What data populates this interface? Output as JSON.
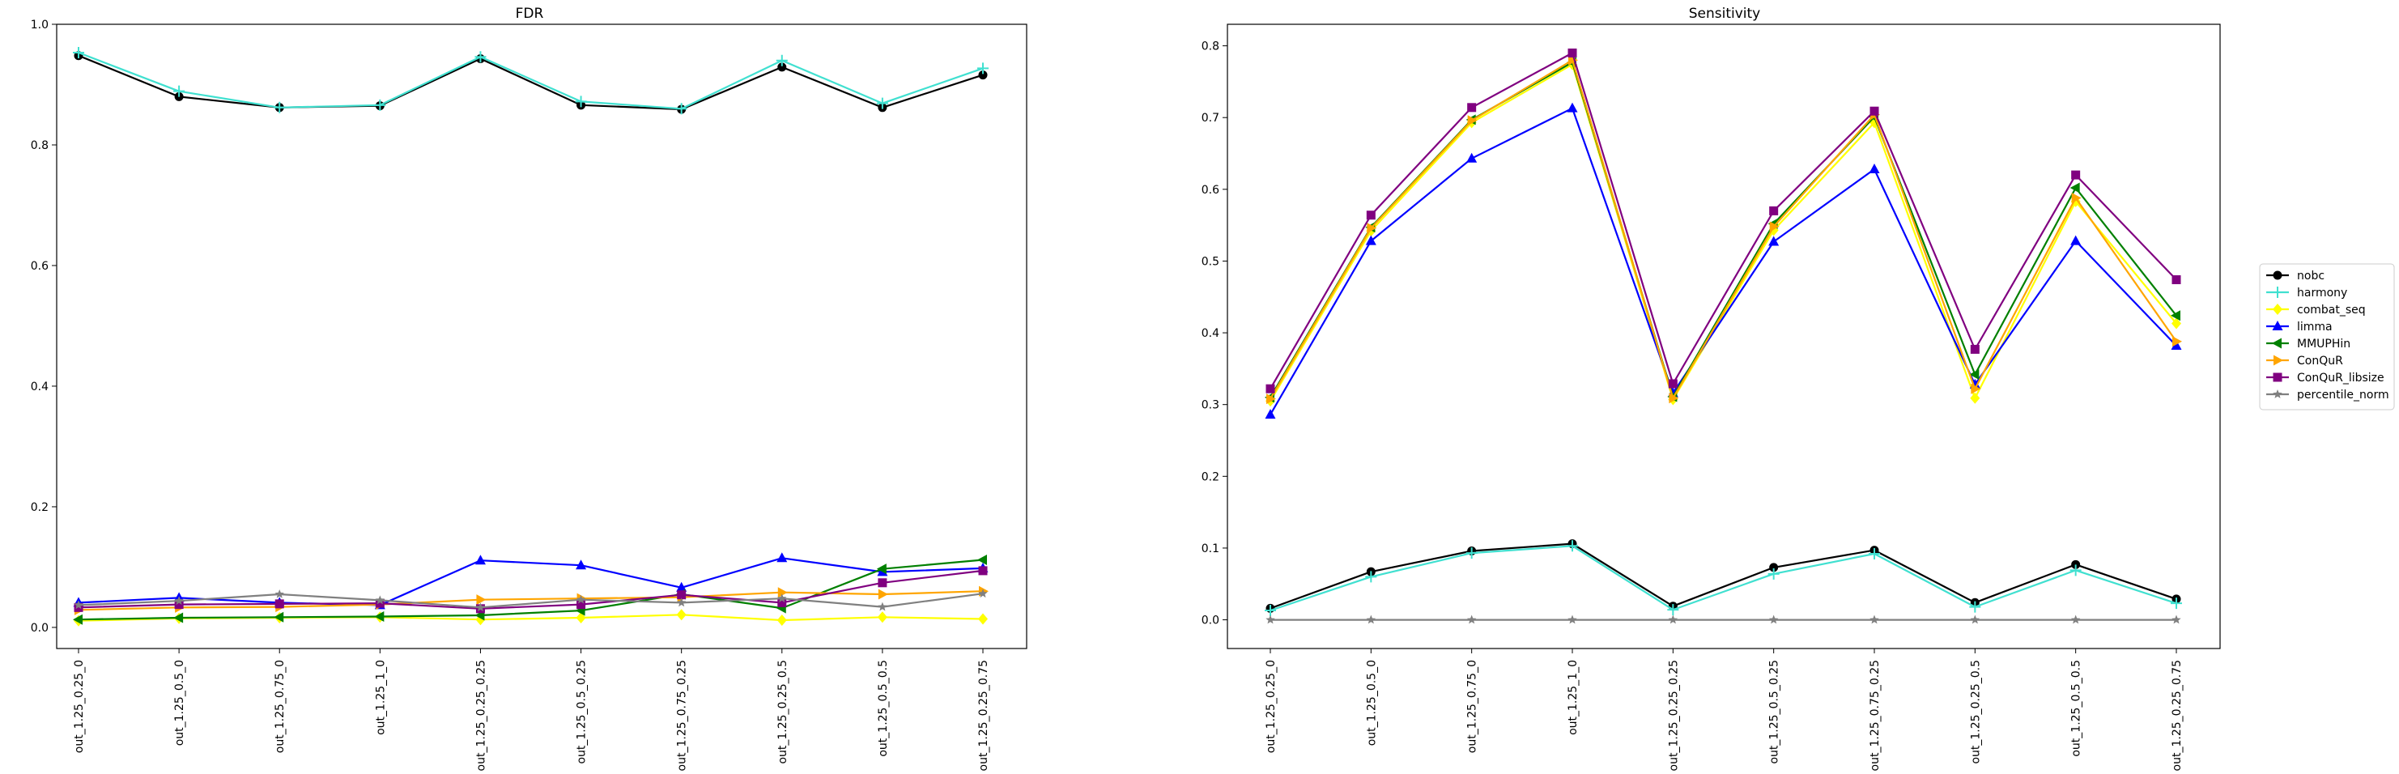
{
  "chart_data": [
    {
      "type": "line",
      "title": "FDR",
      "xlabel": "",
      "ylabel": "",
      "ylim": [
        -0.035,
        1.0
      ],
      "yticks": [
        0.0,
        0.2,
        0.4,
        0.6,
        0.8,
        1.0
      ],
      "ytick_labels": [
        "0.0",
        "0.2",
        "0.4",
        "0.6",
        "0.8",
        "1.0"
      ],
      "grid": false,
      "categories": [
        "out_1.25_0.25_0",
        "out_1.25_0.5_0",
        "out_1.25_0.75_0",
        "out_1.25_1_0",
        "out_1.25_0.25_0.25",
        "out_1.25_0.5_0.25",
        "out_1.25_0.75_0.25",
        "out_1.25_0.25_0.5",
        "out_1.25_0.5_0.5",
        "out_1.25_0.25_0.75"
      ],
      "series": [
        {
          "name": "nobc",
          "color": "#000000",
          "marker": "circle",
          "values": [
            0.948,
            0.88,
            0.862,
            0.865,
            0.943,
            0.866,
            0.859,
            0.929,
            0.862,
            0.916
          ]
        },
        {
          "name": "harmony",
          "color": "#40e0d0",
          "marker": "plus",
          "values": [
            0.953,
            0.889,
            0.862,
            0.866,
            0.946,
            0.872,
            0.86,
            0.94,
            0.869,
            0.927
          ]
        },
        {
          "name": "combat_seq",
          "color": "#ffff00",
          "marker": "diamond",
          "values": [
            0.011,
            0.015,
            0.016,
            0.017,
            0.013,
            0.016,
            0.021,
            0.012,
            0.017,
            0.014
          ]
        },
        {
          "name": "limma",
          "color": "#0000ff",
          "marker": "triangle-up",
          "values": [
            0.041,
            0.049,
            0.041,
            0.037,
            0.111,
            0.103,
            0.066,
            0.115,
            0.092,
            0.098
          ]
        },
        {
          "name": "MMUPHin",
          "color": "#008000",
          "marker": "triangle-left",
          "values": [
            0.013,
            0.016,
            0.017,
            0.018,
            0.02,
            0.028,
            0.055,
            0.032,
            0.097,
            0.112
          ]
        },
        {
          "name": "ConQuR",
          "color": "#ffa500",
          "marker": "triangle-right",
          "values": [
            0.029,
            0.033,
            0.034,
            0.038,
            0.046,
            0.048,
            0.05,
            0.058,
            0.055,
            0.06
          ]
        },
        {
          "name": "ConQuR_libsize",
          "color": "#800080",
          "marker": "square",
          "values": [
            0.033,
            0.038,
            0.039,
            0.04,
            0.031,
            0.038,
            0.054,
            0.041,
            0.074,
            0.094
          ]
        },
        {
          "name": "percentile_norm",
          "color": "#808080",
          "marker": "star",
          "values": [
            0.037,
            0.044,
            0.055,
            0.045,
            0.033,
            0.046,
            0.041,
            0.048,
            0.034,
            0.056
          ]
        }
      ]
    },
    {
      "type": "line",
      "title": "Sensitivity",
      "xlabel": "",
      "ylabel": "",
      "ylim": [
        -0.04,
        0.83
      ],
      "yticks": [
        0.0,
        0.1,
        0.2,
        0.3,
        0.4,
        0.5,
        0.6,
        0.7,
        0.8
      ],
      "ytick_labels": [
        "0.0",
        "0.1",
        "0.2",
        "0.3",
        "0.4",
        "0.5",
        "0.6",
        "0.7",
        "0.8"
      ],
      "grid": false,
      "categories": [
        "out_1.25_0.25_0",
        "out_1.25_0.5_0",
        "out_1.25_0.75_0",
        "out_1.25_1_0",
        "out_1.25_0.25_0.25",
        "out_1.25_0.5_0.25",
        "out_1.25_0.75_0.25",
        "out_1.25_0.25_0.5",
        "out_1.25_0.5_0.5",
        "out_1.25_0.25_0.75"
      ],
      "series": [
        {
          "name": "nobc",
          "color": "#000000",
          "marker": "circle",
          "values": [
            0.016,
            0.067,
            0.096,
            0.106,
            0.019,
            0.073,
            0.097,
            0.024,
            0.077,
            0.029
          ]
        },
        {
          "name": "harmony",
          "color": "#40e0d0",
          "marker": "plus",
          "values": [
            0.013,
            0.06,
            0.093,
            0.103,
            0.014,
            0.064,
            0.092,
            0.018,
            0.069,
            0.023
          ]
        },
        {
          "name": "combat_seq",
          "color": "#ffff00",
          "marker": "diamond",
          "values": [
            0.305,
            0.542,
            0.693,
            0.774,
            0.307,
            0.543,
            0.693,
            0.309,
            0.583,
            0.413
          ]
        },
        {
          "name": "limma",
          "color": "#0000ff",
          "marker": "triangle-up",
          "values": [
            0.286,
            0.528,
            0.643,
            0.713,
            0.316,
            0.527,
            0.628,
            0.328,
            0.528,
            0.382
          ]
        },
        {
          "name": "MMUPHin",
          "color": "#008000",
          "marker": "triangle-left",
          "values": [
            0.31,
            0.547,
            0.697,
            0.777,
            0.311,
            0.552,
            0.701,
            0.342,
            0.602,
            0.424
          ]
        },
        {
          "name": "ConQuR",
          "color": "#ffa500",
          "marker": "triangle-right",
          "values": [
            0.308,
            0.546,
            0.696,
            0.78,
            0.309,
            0.548,
            0.704,
            0.322,
            0.588,
            0.388
          ]
        },
        {
          "name": "ConQuR_libsize",
          "color": "#800080",
          "marker": "square",
          "values": [
            0.322,
            0.564,
            0.714,
            0.79,
            0.329,
            0.57,
            0.709,
            0.377,
            0.62,
            0.474
          ]
        },
        {
          "name": "percentile_norm",
          "color": "#808080",
          "marker": "star",
          "values": [
            0.0,
            0.0,
            0.0,
            0.0,
            0.0,
            0.0,
            0.0,
            0.0,
            0.0,
            0.0
          ]
        }
      ]
    }
  ],
  "legend": {
    "placement": "right",
    "entries": [
      "nobc",
      "harmony",
      "combat_seq",
      "limma",
      "MMUPHin",
      "ConQuR",
      "ConQuR_libsize",
      "percentile_norm"
    ]
  }
}
